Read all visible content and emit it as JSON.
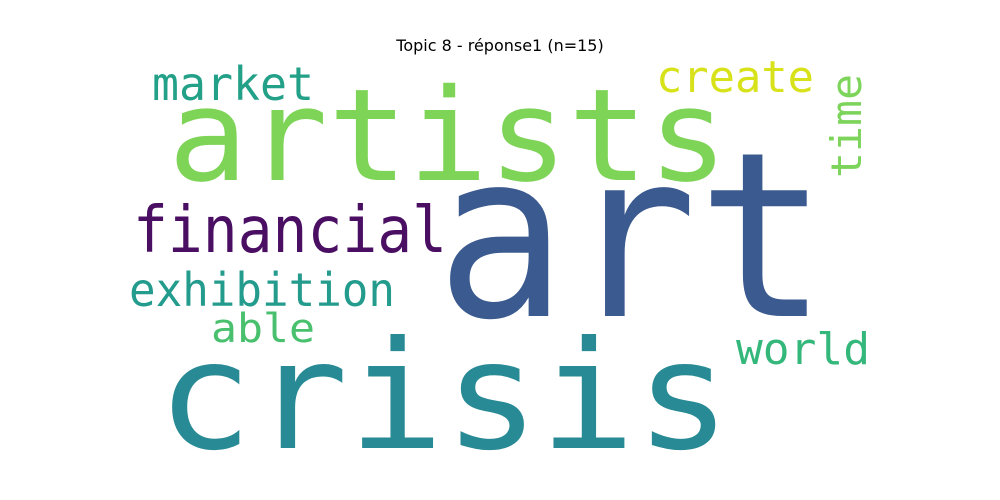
{
  "title": "Topic 8 - réponse1 (n=15)",
  "words": [
    {
      "id": "art",
      "text": "art",
      "color": "#3b5a8f"
    },
    {
      "id": "crisis",
      "text": "crisis",
      "color": "#278a94"
    },
    {
      "id": "artists",
      "text": "artists",
      "color": "#7ed457"
    },
    {
      "id": "financial",
      "text": "financial",
      "color": "#4a0f63"
    },
    {
      "id": "exhibition",
      "text": "exhibition",
      "color": "#239b8d"
    },
    {
      "id": "market",
      "text": "market",
      "color": "#23a088"
    },
    {
      "id": "able",
      "text": "able",
      "color": "#48c06e"
    },
    {
      "id": "world",
      "text": "world",
      "color": "#34b77a"
    },
    {
      "id": "create",
      "text": "create",
      "color": "#d8e21a"
    },
    {
      "id": "time",
      "text": "time",
      "color": "#7cd45a"
    }
  ]
}
